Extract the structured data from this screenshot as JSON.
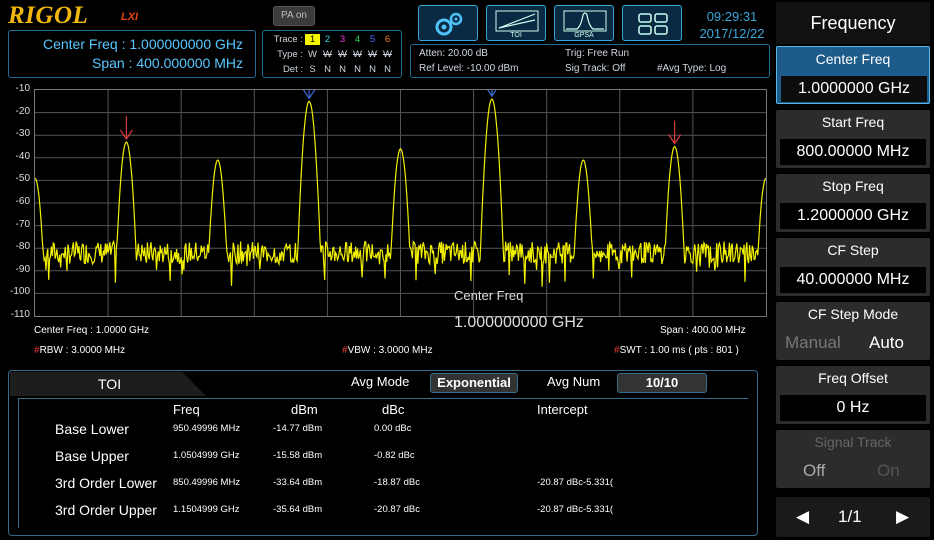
{
  "header": {
    "logo": "RIGOL",
    "logo_sub": "LXI",
    "pa_button": "PA on",
    "mode_buttons": [
      {
        "name": "settings-mode-button",
        "icon": "gears-icon",
        "caption": ""
      },
      {
        "name": "toi-mode-button",
        "icon": "toi-graph-icon",
        "caption": "TOI"
      },
      {
        "name": "gpsa-mode-button",
        "icon": "gpsa-wave-icon",
        "caption": "GPSA"
      },
      {
        "name": "layout-mode-button",
        "icon": "grid-layout-icon",
        "caption": ""
      }
    ],
    "time": "09:29:31",
    "date": "2017/12/22"
  },
  "info": {
    "center_freq_label": "Center Freq :",
    "center_freq_value": "1.000000000 GHz",
    "span_label": "Span :",
    "span_value": "400.000000 MHz"
  },
  "trace": {
    "trace_label": "Trace :",
    "type_label": "Type :",
    "det_label": "Det :",
    "numbers": [
      "1",
      "2",
      "3",
      "4",
      "5",
      "6"
    ],
    "number_colors": [
      "#f5f500",
      "#3ecfe0",
      "#e040e0",
      "#30d050",
      "#4a6cff",
      "#ff8020"
    ],
    "types": [
      "W",
      "W",
      "W",
      "W",
      "W",
      "W"
    ],
    "dets": [
      "S",
      "N",
      "N",
      "N",
      "N",
      "N"
    ]
  },
  "measure": {
    "atten": "Atten: 20.00 dB",
    "ref_level": "Ref Level: -10.00 dBm",
    "trig": "Trig: Free Run",
    "sig_track": "Sig Track: Off",
    "avg_type": "#Avg Type: Log"
  },
  "plot": {
    "y_ticks": [
      "-10",
      "-20",
      "-30",
      "-40",
      "-50",
      "-60",
      "-70",
      "-80",
      "-90",
      "-100",
      "-110"
    ],
    "trace_color": "#f0f000",
    "marker_color": "#d83a3a",
    "center_freq_label": "Center Freq : 1.0000 GHz",
    "span_label": "Span : 400.00 MHz",
    "rbw": "RBW : 3.0000 MHz",
    "vbw": "VBW : 3.0000 MHz",
    "swt": "SWT : 1.00 ms ( pts : 801 )",
    "overlay_title": "Center Freq",
    "overlay_value": "1.000000000 GHz"
  },
  "toi": {
    "tab_label": "TOI",
    "avg_mode_label": "Avg Mode",
    "avg_mode_value": "Exponential",
    "avg_num_label": "Avg Num",
    "avg_num_value": "10/10",
    "columns": [
      "Freq",
      "dBm",
      "dBc",
      "Intercept"
    ],
    "rows": [
      {
        "label": "Base Lower",
        "freq": "950.49996 MHz",
        "dbm": "-14.77 dBm",
        "dbc": "0.00 dBc",
        "intercept": ""
      },
      {
        "label": "Base Upper",
        "freq": "1.0504999 GHz",
        "dbm": "-15.58 dBm",
        "dbc": "-0.82 dBc",
        "intercept": ""
      },
      {
        "label": "3rd Order Lower",
        "freq": "850.49996 MHz",
        "dbm": "-33.64 dBm",
        "dbc": "-18.87 dBc",
        "intercept": "-20.87 dBc-5.331("
      },
      {
        "label": "3rd Order Upper",
        "freq": "1.1504999 GHz",
        "dbm": "-35.64 dBm",
        "dbc": "-20.87 dBc",
        "intercept": "-20.87 dBc-5.331("
      }
    ]
  },
  "menu": {
    "title": "Frequency",
    "items": [
      {
        "label": "Center Freq",
        "value": "1.0000000 GHz"
      },
      {
        "label": "Start Freq",
        "value": "800.00000 MHz"
      },
      {
        "label": "Stop Freq",
        "value": "1.2000000 GHz"
      },
      {
        "label": "CF Step",
        "value": "40.000000 MHz"
      },
      {
        "label": "CF Step Mode",
        "opt_a": "Manual",
        "opt_b": "Auto"
      },
      {
        "label": "Freq Offset",
        "value": "0 Hz"
      },
      {
        "label": "Signal Track",
        "opt_a": "Off",
        "opt_b": "On"
      }
    ],
    "page": "1/1",
    "prev_icon": "left-arrow-icon",
    "next_icon": "right-arrow-icon"
  }
}
